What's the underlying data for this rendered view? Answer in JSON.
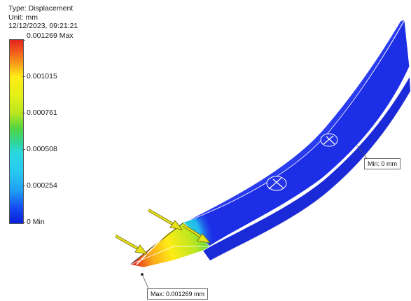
{
  "header": {
    "type_line": "Type: Displacement",
    "unit_line": "Unit: mm",
    "timestamp": "12/12/2023, 09:21:21"
  },
  "legend": {
    "labels": [
      "0.001269 Max",
      "0.001015",
      "0.000761",
      "0.000508",
      "0.000254",
      "0 Min"
    ]
  },
  "callouts": {
    "min_label": "Min: 0 mm",
    "max_label": "Max: 0.001269 mm"
  },
  "colors": {
    "model_blue": "#1c2ee6",
    "max_red": "#e3231d",
    "arrow_yellow": "#e8e21a"
  }
}
